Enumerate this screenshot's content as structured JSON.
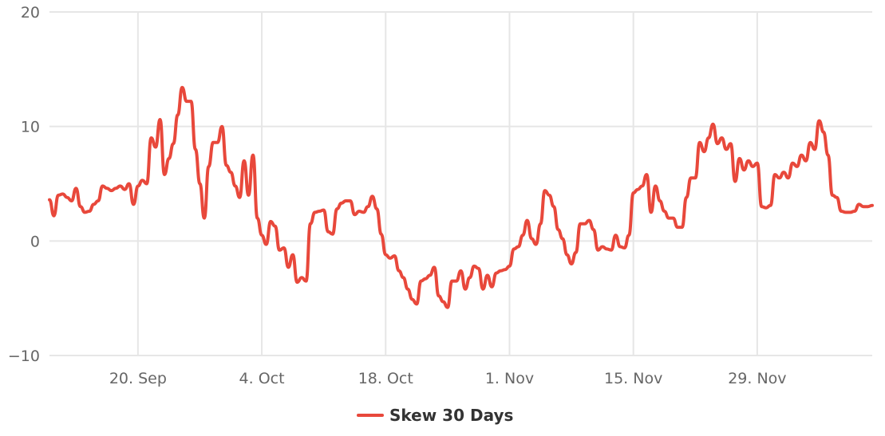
{
  "chart_data": {
    "type": "line",
    "title": "",
    "xlabel": "",
    "ylabel": "",
    "x_ticks": [
      {
        "date": "2021-09-20",
        "label": "20. Sep"
      },
      {
        "date": "2021-10-04",
        "label": "4. Oct"
      },
      {
        "date": "2021-10-18",
        "label": "18. Oct"
      },
      {
        "date": "2021-11-01",
        "label": "1. Nov"
      },
      {
        "date": "2021-11-15",
        "label": "15. Nov"
      },
      {
        "date": "2021-11-29",
        "label": "29. Nov"
      }
    ],
    "y_ticks": [
      {
        "value": 20,
        "label": "20"
      },
      {
        "value": 10,
        "label": "10"
      },
      {
        "value": 0,
        "label": "0"
      },
      {
        "value": -10,
        "label": "−10"
      }
    ],
    "xlim": [
      "2021-09-10",
      "2021-12-12"
    ],
    "ylim": [
      -10,
      20
    ],
    "grid": true,
    "legend_position": "bottom-center",
    "series": [
      {
        "name": "Skew 30 Days",
        "color": "#e8483b",
        "points": [
          [
            "2021-09-10",
            3.6
          ],
          [
            "2021-09-10 12:00",
            2.2
          ],
          [
            "2021-09-11",
            4.0
          ],
          [
            "2021-09-11 12:00",
            4.1
          ],
          [
            "2021-09-12",
            3.8
          ],
          [
            "2021-09-12 12:00",
            3.5
          ],
          [
            "2021-09-13",
            4.6
          ],
          [
            "2021-09-13 12:00",
            3.0
          ],
          [
            "2021-09-14",
            2.5
          ],
          [
            "2021-09-14 12:00",
            2.6
          ],
          [
            "2021-09-15",
            3.2
          ],
          [
            "2021-09-15 12:00",
            3.5
          ],
          [
            "2021-09-16",
            4.8
          ],
          [
            "2021-09-16 12:00",
            4.6
          ],
          [
            "2021-09-17",
            4.4
          ],
          [
            "2021-09-17 12:00",
            4.6
          ],
          [
            "2021-09-18",
            4.8
          ],
          [
            "2021-09-18 12:00",
            4.5
          ],
          [
            "2021-09-19",
            5.0
          ],
          [
            "2021-09-19 12:00",
            3.2
          ],
          [
            "2021-09-20",
            4.8
          ],
          [
            "2021-09-20 12:00",
            5.3
          ],
          [
            "2021-09-21",
            5.0
          ],
          [
            "2021-09-21 12:00",
            9.0
          ],
          [
            "2021-09-22",
            8.2
          ],
          [
            "2021-09-22 12:00",
            10.6
          ],
          [
            "2021-09-23",
            5.8
          ],
          [
            "2021-09-23 12:00",
            7.2
          ],
          [
            "2021-09-24",
            8.5
          ],
          [
            "2021-09-24 12:00",
            11.0
          ],
          [
            "2021-09-25",
            13.4
          ],
          [
            "2021-09-25 12:00",
            12.2
          ],
          [
            "2021-09-26",
            12.2
          ],
          [
            "2021-09-26 12:00",
            8.0
          ],
          [
            "2021-09-27",
            5.0
          ],
          [
            "2021-09-27 12:00",
            2.0
          ],
          [
            "2021-09-28",
            6.5
          ],
          [
            "2021-09-28 12:00",
            8.6
          ],
          [
            "2021-09-29",
            8.6
          ],
          [
            "2021-09-29 12:00",
            10.0
          ],
          [
            "2021-09-30",
            6.6
          ],
          [
            "2021-09-30 12:00",
            6.0
          ],
          [
            "2021-10-01",
            4.8
          ],
          [
            "2021-10-01 12:00",
            3.8
          ],
          [
            "2021-10-02",
            7.0
          ],
          [
            "2021-10-02 12:00",
            4.0
          ],
          [
            "2021-10-03",
            7.5
          ],
          [
            "2021-10-03 12:00",
            2.0
          ],
          [
            "2021-10-04",
            0.5
          ],
          [
            "2021-10-04 12:00",
            -0.3
          ],
          [
            "2021-10-05",
            1.7
          ],
          [
            "2021-10-05 12:00",
            1.3
          ],
          [
            "2021-10-06",
            -0.8
          ],
          [
            "2021-10-06 12:00",
            -0.6
          ],
          [
            "2021-10-07",
            -2.3
          ],
          [
            "2021-10-07 12:00",
            -1.2
          ],
          [
            "2021-10-08",
            -3.6
          ],
          [
            "2021-10-08 12:00",
            -3.2
          ],
          [
            "2021-10-09",
            -3.5
          ],
          [
            "2021-10-09 12:00",
            1.5
          ],
          [
            "2021-10-10",
            2.5
          ],
          [
            "2021-10-10 12:00",
            2.6
          ],
          [
            "2021-10-11",
            2.7
          ],
          [
            "2021-10-11 12:00",
            0.8
          ],
          [
            "2021-10-12",
            0.6
          ],
          [
            "2021-10-12 12:00",
            2.8
          ],
          [
            "2021-10-13",
            3.3
          ],
          [
            "2021-10-13 12:00",
            3.5
          ],
          [
            "2021-10-14",
            3.5
          ],
          [
            "2021-10-14 12:00",
            2.3
          ],
          [
            "2021-10-15",
            2.6
          ],
          [
            "2021-10-15 12:00",
            2.5
          ],
          [
            "2021-10-16",
            3.0
          ],
          [
            "2021-10-16 12:00",
            3.9
          ],
          [
            "2021-10-17",
            2.8
          ],
          [
            "2021-10-17 12:00",
            0.6
          ],
          [
            "2021-10-18",
            -1.2
          ],
          [
            "2021-10-18 12:00",
            -1.5
          ],
          [
            "2021-10-19",
            -1.3
          ],
          [
            "2021-10-19 12:00",
            -2.6
          ],
          [
            "2021-10-20",
            -3.2
          ],
          [
            "2021-10-20 12:00",
            -4.2
          ],
          [
            "2021-10-21",
            -5.1
          ],
          [
            "2021-10-21 12:00",
            -5.5
          ],
          [
            "2021-10-22",
            -3.5
          ],
          [
            "2021-10-22 12:00",
            -3.3
          ],
          [
            "2021-10-23",
            -3.0
          ],
          [
            "2021-10-23 12:00",
            -2.3
          ],
          [
            "2021-10-24",
            -4.8
          ],
          [
            "2021-10-24 12:00",
            -5.3
          ],
          [
            "2021-10-25",
            -5.8
          ],
          [
            "2021-10-25 12:00",
            -3.5
          ],
          [
            "2021-10-26",
            -3.5
          ],
          [
            "2021-10-26 12:00",
            -2.6
          ],
          [
            "2021-10-27",
            -4.2
          ],
          [
            "2021-10-27 12:00",
            -3.2
          ],
          [
            "2021-10-28",
            -2.2
          ],
          [
            "2021-10-28 12:00",
            -2.4
          ],
          [
            "2021-10-29",
            -4.2
          ],
          [
            "2021-10-29 12:00",
            -3.0
          ],
          [
            "2021-10-30",
            -4.0
          ],
          [
            "2021-10-30 12:00",
            -2.8
          ],
          [
            "2021-10-31",
            -2.6
          ],
          [
            "2021-10-31 12:00",
            -2.5
          ],
          [
            "2021-11-01",
            -2.2
          ],
          [
            "2021-11-01 12:00",
            -0.7
          ],
          [
            "2021-11-02",
            -0.5
          ],
          [
            "2021-11-02 12:00",
            0.5
          ],
          [
            "2021-11-03",
            1.8
          ],
          [
            "2021-11-03 12:00",
            0.2
          ],
          [
            "2021-11-04",
            -0.3
          ],
          [
            "2021-11-04 12:00",
            1.5
          ],
          [
            "2021-11-05",
            4.4
          ],
          [
            "2021-11-05 12:00",
            4.0
          ],
          [
            "2021-11-06",
            3.0
          ],
          [
            "2021-11-06 12:00",
            1.0
          ],
          [
            "2021-11-07",
            0.2
          ],
          [
            "2021-11-07 12:00",
            -1.2
          ],
          [
            "2021-11-08",
            -2.0
          ],
          [
            "2021-11-08 12:00",
            -1.0
          ],
          [
            "2021-11-09",
            1.5
          ],
          [
            "2021-11-09 12:00",
            1.5
          ],
          [
            "2021-11-10",
            1.8
          ],
          [
            "2021-11-10 12:00",
            1.0
          ],
          [
            "2021-11-11",
            -0.8
          ],
          [
            "2021-11-11 12:00",
            -0.5
          ],
          [
            "2021-11-12",
            -0.7
          ],
          [
            "2021-11-12 12:00",
            -0.8
          ],
          [
            "2021-11-13",
            0.5
          ],
          [
            "2021-11-13 12:00",
            -0.5
          ],
          [
            "2021-11-14",
            -0.6
          ],
          [
            "2021-11-14 12:00",
            0.5
          ],
          [
            "2021-11-15",
            4.2
          ],
          [
            "2021-11-15 12:00",
            4.5
          ],
          [
            "2021-11-16",
            4.8
          ],
          [
            "2021-11-16 12:00",
            5.8
          ],
          [
            "2021-11-17",
            2.5
          ],
          [
            "2021-11-17 12:00",
            4.8
          ],
          [
            "2021-11-18",
            3.5
          ],
          [
            "2021-11-18 12:00",
            2.6
          ],
          [
            "2021-11-19",
            2.0
          ],
          [
            "2021-11-19 12:00",
            2.0
          ],
          [
            "2021-11-20",
            1.2
          ],
          [
            "2021-11-20 12:00",
            1.2
          ],
          [
            "2021-11-21",
            3.8
          ],
          [
            "2021-11-21 12:00",
            5.5
          ],
          [
            "2021-11-22",
            5.5
          ],
          [
            "2021-11-22 12:00",
            8.6
          ],
          [
            "2021-11-23",
            7.8
          ],
          [
            "2021-11-23 12:00",
            9.0
          ],
          [
            "2021-11-24",
            10.2
          ],
          [
            "2021-11-24 12:00",
            8.5
          ],
          [
            "2021-11-25",
            9.0
          ],
          [
            "2021-11-25 12:00",
            8.0
          ],
          [
            "2021-11-26",
            8.5
          ],
          [
            "2021-11-26 12:00",
            5.2
          ],
          [
            "2021-11-27",
            7.2
          ],
          [
            "2021-11-27 12:00",
            6.2
          ],
          [
            "2021-11-28",
            7.0
          ],
          [
            "2021-11-28 12:00",
            6.5
          ],
          [
            "2021-11-29",
            6.8
          ],
          [
            "2021-11-29 12:00",
            3.0
          ],
          [
            "2021-11-30",
            2.9
          ],
          [
            "2021-11-30 12:00",
            3.1
          ],
          [
            "2021-12-01",
            5.8
          ],
          [
            "2021-12-01 12:00",
            5.5
          ],
          [
            "2021-12-02",
            6.0
          ],
          [
            "2021-12-02 12:00",
            5.5
          ],
          [
            "2021-12-03",
            6.8
          ],
          [
            "2021-12-03 12:00",
            6.5
          ],
          [
            "2021-12-04",
            7.5
          ],
          [
            "2021-12-04 12:00",
            7.0
          ],
          [
            "2021-12-05",
            8.6
          ],
          [
            "2021-12-05 12:00",
            8.0
          ],
          [
            "2021-12-06",
            10.5
          ],
          [
            "2021-12-06 12:00",
            9.5
          ],
          [
            "2021-12-07",
            7.5
          ],
          [
            "2021-12-07 12:00",
            4.0
          ],
          [
            "2021-12-08",
            3.8
          ],
          [
            "2021-12-08 12:00",
            2.6
          ],
          [
            "2021-12-09",
            2.5
          ],
          [
            "2021-12-09 12:00",
            2.5
          ],
          [
            "2021-12-10",
            2.6
          ],
          [
            "2021-12-10 12:00",
            3.2
          ],
          [
            "2021-12-11",
            3.0
          ],
          [
            "2021-12-11 12:00",
            3.0
          ],
          [
            "2021-12-12",
            3.1
          ]
        ]
      }
    ]
  }
}
